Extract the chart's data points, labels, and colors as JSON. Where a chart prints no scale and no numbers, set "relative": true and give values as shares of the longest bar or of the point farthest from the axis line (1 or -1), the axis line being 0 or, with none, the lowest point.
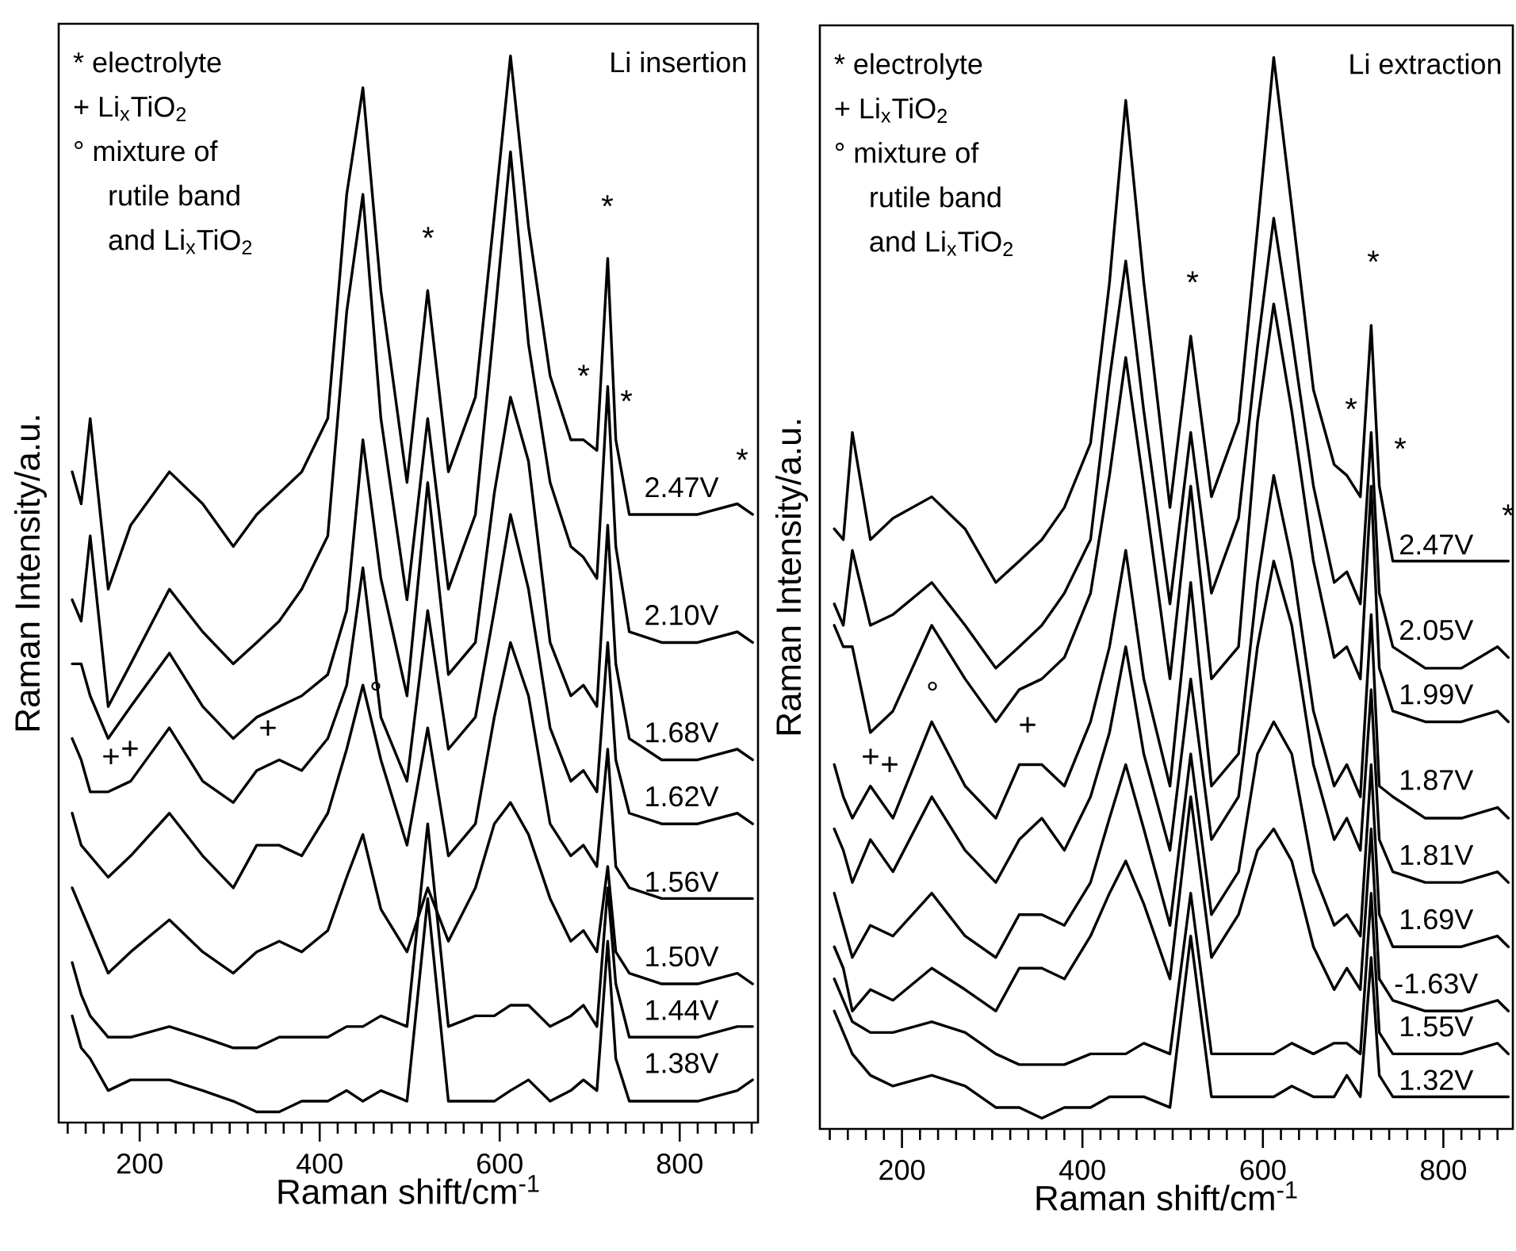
{
  "chart_data": [
    {
      "type": "line",
      "title": "Li insertion",
      "xlabel": "Raman shift/cm$^{-1}$",
      "ylabel": "Raman Intensity/a.u.",
      "relative": true,
      "xlim": [
        110,
        887
      ],
      "xticks": [
        {
          "value": 120,
          "label": null
        },
        {
          "value": 140,
          "label": null
        },
        {
          "value": 160,
          "label": null
        },
        {
          "value": 180,
          "label": null
        },
        200,
        {
          "value": 220,
          "label": null
        },
        {
          "value": 240,
          "label": null
        },
        {
          "value": 260,
          "label": null
        },
        {
          "value": 280,
          "label": null
        },
        {
          "value": 300,
          "label": null
        },
        {
          "value": 320,
          "label": null
        },
        {
          "value": 340,
          "label": null
        },
        {
          "value": 360,
          "label": null
        },
        {
          "value": 380,
          "label": null
        },
        400,
        {
          "value": 420,
          "label": null
        },
        {
          "value": 440,
          "label": null
        },
        {
          "value": 460,
          "label": null
        },
        {
          "value": 480,
          "label": null
        },
        {
          "value": 500,
          "label": null
        },
        {
          "value": 520,
          "label": null
        },
        {
          "value": 540,
          "label": null
        },
        {
          "value": 560,
          "label": null
        },
        {
          "value": 580,
          "label": null
        },
        600,
        {
          "value": 620,
          "label": null
        },
        {
          "value": 640,
          "label": null
        },
        {
          "value": 660,
          "label": null
        },
        {
          "value": 680,
          "label": null
        },
        {
          "value": 700,
          "label": null
        },
        {
          "value": 720,
          "label": null
        },
        {
          "value": 740,
          "label": null
        },
        {
          "value": 760,
          "label": null
        },
        {
          "value": 780,
          "label": null
        },
        800,
        {
          "value": 820,
          "label": null
        },
        {
          "value": 840,
          "label": null
        },
        {
          "value": 860,
          "label": null
        },
        {
          "value": 880,
          "label": null
        }
      ],
      "x": [
        125,
        135,
        145,
        165,
        190,
        233,
        270,
        304,
        330,
        355,
        380,
        409,
        430,
        448,
        468,
        497,
        520,
        543,
        573,
        594,
        612,
        632,
        656,
        679,
        693,
        708,
        720,
        729,
        744,
        780,
        820,
        864,
        881
      ],
      "series": [
        {
          "name": "2.47V",
          "color": "#000000",
          "values": [
            0.61,
            0.58,
            0.66,
            0.5,
            0.56,
            0.61,
            0.58,
            0.54,
            0.57,
            0.59,
            0.61,
            0.66,
            0.87,
            0.97,
            0.78,
            0.6,
            0.78,
            0.61,
            0.68,
            0.85,
            1,
            0.84,
            0.7,
            0.64,
            0.64,
            0.63,
            0.81,
            0.64,
            0.57,
            0.57,
            0.57,
            0.58,
            0.57
          ]
        },
        {
          "name": "2.10V",
          "color": "#000000",
          "values": [
            0.49,
            0.47,
            0.55,
            0.39,
            0.43,
            0.5,
            0.46,
            0.43,
            0.45,
            0.47,
            0.5,
            0.55,
            0.76,
            0.87,
            0.66,
            0.49,
            0.66,
            0.5,
            0.57,
            0.75,
            0.91,
            0.73,
            0.6,
            0.54,
            0.53,
            0.51,
            0.69,
            0.54,
            0.46,
            0.45,
            0.45,
            0.46,
            0.45
          ]
        },
        {
          "name": "1.68V",
          "color": "#000000",
          "values": [
            0.43,
            0.43,
            0.4,
            0.36,
            0.39,
            0.44,
            0.39,
            0.36,
            0.38,
            0.39,
            0.4,
            0.42,
            0.48,
            0.64,
            0.51,
            0.4,
            0.6,
            0.42,
            0.45,
            0.59,
            0.68,
            0.62,
            0.45,
            0.4,
            0.41,
            0.39,
            0.56,
            0.43,
            0.36,
            0.34,
            0.34,
            0.35,
            0.34
          ]
        },
        {
          "name": "1.62V",
          "color": "#000000",
          "values": [
            0.36,
            0.34,
            0.31,
            0.31,
            0.32,
            0.37,
            0.32,
            0.3,
            0.33,
            0.34,
            0.33,
            0.36,
            0.41,
            0.52,
            0.38,
            0.32,
            0.48,
            0.35,
            0.38,
            0.48,
            0.57,
            0.5,
            0.37,
            0.32,
            0.33,
            0.31,
            0.45,
            0.34,
            0.29,
            0.28,
            0.28,
            0.29,
            0.28
          ]
        },
        {
          "name": "1.56V",
          "color": "#000000",
          "values": [
            0.29,
            0.26,
            0.25,
            0.23,
            0.25,
            0.29,
            0.25,
            0.22,
            0.26,
            0.26,
            0.25,
            0.29,
            0.35,
            0.41,
            0.34,
            0.26,
            0.37,
            0.25,
            0.28,
            0.38,
            0.45,
            0.4,
            0.28,
            0.25,
            0.26,
            0.24,
            0.35,
            0.24,
            0.22,
            0.21,
            0.21,
            0.21,
            0.21
          ]
        },
        {
          "name": "1.50V",
          "color": "#000000",
          "values": [
            0.22,
            0.2,
            0.18,
            0.14,
            0.16,
            0.19,
            0.16,
            0.14,
            0.16,
            0.17,
            0.16,
            0.18,
            0.23,
            0.27,
            0.2,
            0.16,
            0.22,
            0.17,
            0.22,
            0.28,
            0.3,
            0.27,
            0.21,
            0.17,
            0.18,
            0.16,
            0.24,
            0.16,
            0.14,
            0.13,
            0.13,
            0.14,
            0.13
          ]
        },
        {
          "name": "1.44V",
          "color": "#000000",
          "values": [
            0.15,
            0.12,
            0.1,
            0.08,
            0.08,
            0.09,
            0.08,
            0.07,
            0.07,
            0.08,
            0.08,
            0.08,
            0.09,
            0.09,
            0.1,
            0.09,
            0.28,
            0.09,
            0.1,
            0.1,
            0.11,
            0.11,
            0.09,
            0.1,
            0.11,
            0.09,
            0.22,
            0.13,
            0.08,
            0.08,
            0.08,
            0.09,
            0.09
          ]
        },
        {
          "name": "1.38V",
          "color": "#000000",
          "values": [
            0.1,
            0.07,
            0.06,
            0.03,
            0.04,
            0.04,
            0.03,
            0.02,
            0.01,
            0.01,
            0.02,
            0.02,
            0.03,
            0.02,
            0.03,
            0.02,
            0.21,
            0.02,
            0.02,
            0.02,
            0.03,
            0.04,
            0.02,
            0.03,
            0.04,
            0.03,
            0.17,
            0.06,
            0.02,
            0.02,
            0.02,
            0.03,
            0.04
          ]
        }
      ],
      "annotations": [
        "* electrolyte",
        "+ Li$_{x}$TiO$_{2}$",
        "° mixture of rutile band and Li$_{x}$TiO$_{2}$",
        "*",
        "*",
        "*",
        "*",
        "*",
        "°",
        "+",
        "+",
        "+"
      ]
    },
    {
      "type": "line",
      "title": "Li extraction",
      "xlabel": "Raman shift/cm$^{-1}$",
      "ylabel": "Raman Intensity/a.u.",
      "relative": true,
      "xlim": [
        109,
        877
      ],
      "xticks": [
        {
          "value": 120,
          "label": null
        },
        {
          "value": 140,
          "label": null
        },
        {
          "value": 160,
          "label": null
        },
        {
          "value": 180,
          "label": null
        },
        200,
        {
          "value": 220,
          "label": null
        },
        {
          "value": 240,
          "label": null
        },
        {
          "value": 260,
          "label": null
        },
        {
          "value": 280,
          "label": null
        },
        {
          "value": 300,
          "label": null
        },
        {
          "value": 320,
          "label": null
        },
        {
          "value": 340,
          "label": null
        },
        {
          "value": 360,
          "label": null
        },
        {
          "value": 380,
          "label": null
        },
        400,
        {
          "value": 420,
          "label": null
        },
        {
          "value": 440,
          "label": null
        },
        {
          "value": 460,
          "label": null
        },
        {
          "value": 480,
          "label": null
        },
        {
          "value": 500,
          "label": null
        },
        {
          "value": 520,
          "label": null
        },
        {
          "value": 540,
          "label": null
        },
        {
          "value": 560,
          "label": null
        },
        {
          "value": 580,
          "label": null
        },
        600,
        {
          "value": 620,
          "label": null
        },
        {
          "value": 640,
          "label": null
        },
        {
          "value": 660,
          "label": null
        },
        {
          "value": 680,
          "label": null
        },
        {
          "value": 700,
          "label": null
        },
        {
          "value": 720,
          "label": null
        },
        {
          "value": 740,
          "label": null
        },
        {
          "value": 760,
          "label": null
        },
        {
          "value": 780,
          "label": null
        },
        800,
        {
          "value": 820,
          "label": null
        },
        {
          "value": 840,
          "label": null
        },
        {
          "value": 860,
          "label": null
        }
      ],
      "x": [
        125,
        135,
        145,
        165,
        190,
        233,
        270,
        304,
        330,
        355,
        380,
        409,
        430,
        448,
        468,
        497,
        520,
        543,
        573,
        594,
        612,
        632,
        656,
        679,
        693,
        708,
        720,
        729,
        744,
        780,
        820,
        860,
        872
      ],
      "series": [
        {
          "name": "2.47V",
          "color": "#000000",
          "values": [
            0.56,
            0.55,
            0.65,
            0.55,
            0.57,
            0.59,
            0.56,
            0.51,
            0.53,
            0.55,
            0.58,
            0.64,
            0.79,
            0.96,
            0.79,
            0.58,
            0.74,
            0.59,
            0.66,
            0.84,
            1,
            0.86,
            0.69,
            0.62,
            0.61,
            0.59,
            0.75,
            0.6,
            0.53,
            0.53,
            0.53,
            0.53,
            0.53
          ]
        },
        {
          "name": "2.05V",
          "color": "#000000",
          "values": [
            0.49,
            0.47,
            0.54,
            0.47,
            0.48,
            0.51,
            0.47,
            0.43,
            0.45,
            0.47,
            0.5,
            0.55,
            0.7,
            0.81,
            0.67,
            0.49,
            0.65,
            0.5,
            0.57,
            0.73,
            0.85,
            0.74,
            0.6,
            0.51,
            0.52,
            0.49,
            0.65,
            0.5,
            0.45,
            0.43,
            0.43,
            0.45,
            0.44
          ]
        },
        {
          "name": "1.99V",
          "color": "#000000",
          "values": [
            0.47,
            0.45,
            0.45,
            0.37,
            0.39,
            0.47,
            0.42,
            0.38,
            0.41,
            0.42,
            0.44,
            0.5,
            0.61,
            0.72,
            0.6,
            0.42,
            0.6,
            0.42,
            0.45,
            0.66,
            0.77,
            0.67,
            0.53,
            0.44,
            0.45,
            0.42,
            0.6,
            0.43,
            0.39,
            0.38,
            0.38,
            0.39,
            0.38
          ]
        },
        {
          "name": "1.87V",
          "color": "#000000",
          "values": [
            0.34,
            0.31,
            0.29,
            0.32,
            0.29,
            0.38,
            0.32,
            0.29,
            0.34,
            0.34,
            0.32,
            0.38,
            0.45,
            0.54,
            0.42,
            0.32,
            0.51,
            0.32,
            0.35,
            0.51,
            0.61,
            0.53,
            0.39,
            0.32,
            0.34,
            0.31,
            0.48,
            0.32,
            0.31,
            0.29,
            0.29,
            0.3,
            0.29
          ]
        },
        {
          "name": "1.81V",
          "color": "#000000",
          "values": [
            0.28,
            0.26,
            0.23,
            0.27,
            0.24,
            0.31,
            0.26,
            0.23,
            0.27,
            0.29,
            0.26,
            0.31,
            0.37,
            0.45,
            0.35,
            0.26,
            0.42,
            0.27,
            0.31,
            0.45,
            0.53,
            0.47,
            0.34,
            0.27,
            0.29,
            0.26,
            0.41,
            0.27,
            0.24,
            0.23,
            0.23,
            0.24,
            0.23
          ]
        },
        {
          "name": "1.69V",
          "color": "#000000",
          "values": [
            0.22,
            0.19,
            0.16,
            0.19,
            0.18,
            0.22,
            0.18,
            0.16,
            0.2,
            0.2,
            0.19,
            0.23,
            0.29,
            0.34,
            0.28,
            0.19,
            0.35,
            0.2,
            0.24,
            0.35,
            0.38,
            0.35,
            0.24,
            0.19,
            0.2,
            0.18,
            0.34,
            0.2,
            0.17,
            0.17,
            0.17,
            0.18,
            0.17
          ]
        },
        {
          "name": "-1.63V",
          "color": "#000000",
          "values": [
            0.17,
            0.15,
            0.11,
            0.13,
            0.12,
            0.15,
            0.13,
            0.11,
            0.15,
            0.15,
            0.14,
            0.18,
            0.22,
            0.25,
            0.21,
            0.14,
            0.31,
            0.16,
            0.2,
            0.26,
            0.28,
            0.25,
            0.17,
            0.13,
            0.15,
            0.13,
            0.28,
            0.14,
            0.12,
            0.11,
            0.11,
            0.12,
            0.11
          ]
        },
        {
          "name": "1.55V",
          "color": "#000000",
          "values": [
            0.14,
            0.12,
            0.1,
            0.09,
            0.09,
            0.1,
            0.09,
            0.07,
            0.06,
            0.06,
            0.06,
            0.07,
            0.07,
            0.07,
            0.08,
            0.07,
            0.22,
            0.07,
            0.07,
            0.07,
            0.07,
            0.08,
            0.07,
            0.08,
            0.08,
            0.07,
            0.22,
            0.09,
            0.07,
            0.07,
            0.07,
            0.08,
            0.07
          ]
        },
        {
          "name": "1.32V",
          "color": "#000000",
          "values": [
            0.11,
            0.09,
            0.07,
            0.05,
            0.04,
            0.05,
            0.04,
            0.02,
            0.02,
            0.01,
            0.02,
            0.02,
            0.03,
            0.03,
            0.03,
            0.02,
            0.18,
            0.03,
            0.03,
            0.03,
            0.03,
            0.04,
            0.03,
            0.03,
            0.05,
            0.03,
            0.16,
            0.05,
            0.03,
            0.03,
            0.03,
            0.03,
            0.03
          ]
        }
      ],
      "annotations": [
        "* electrolyte",
        "+ Li$_{x}$TiO$_{2}$",
        "° mixture of rutile band and Li$_{x}$TiO$_{2}$",
        "*",
        "*",
        "*",
        "*",
        "*",
        "°",
        "+",
        "+",
        "+"
      ]
    }
  ]
}
